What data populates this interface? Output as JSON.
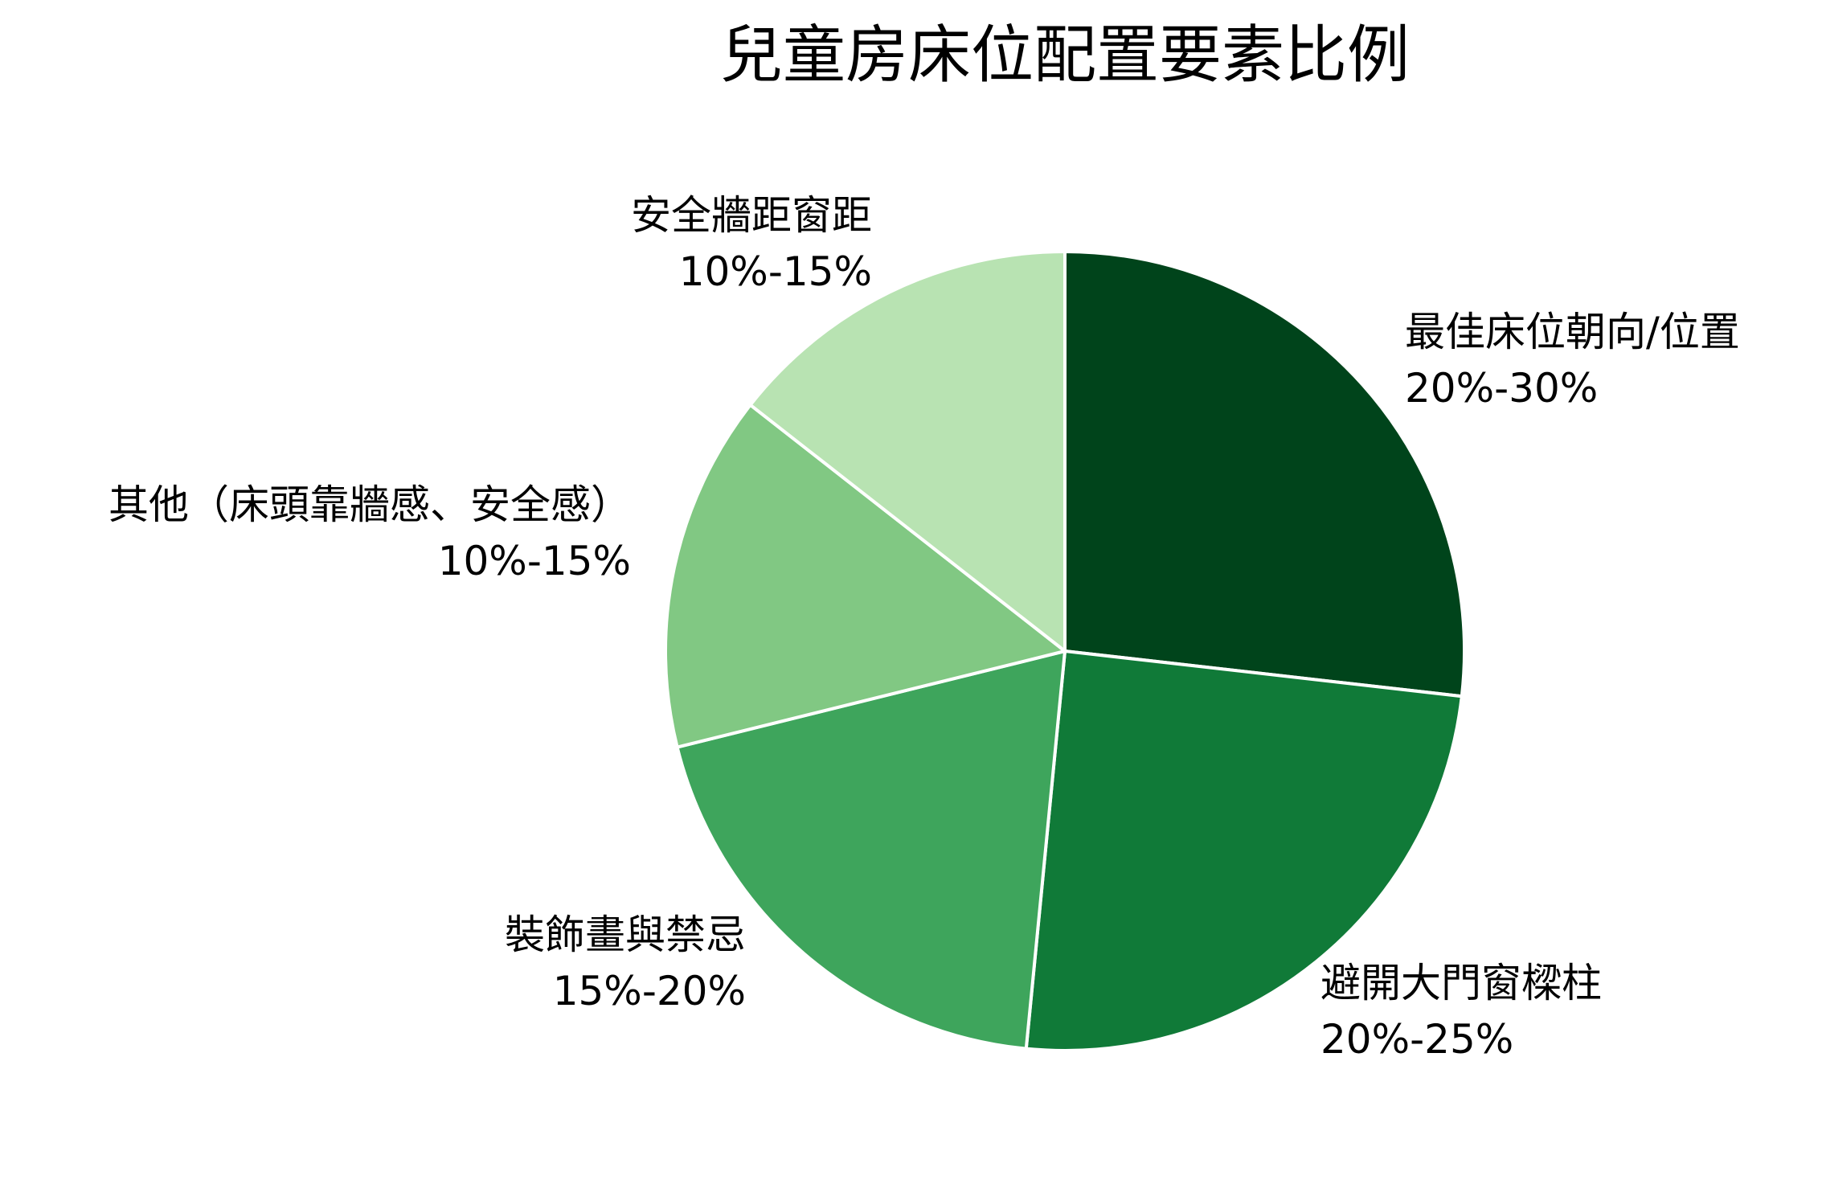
{
  "chart_data": {
    "type": "pie",
    "title": "兒童房床位配置要素比例",
    "start_angle_deg": 90,
    "direction": "clockwise",
    "slices": [
      {
        "name": "最佳床位朝向/位置",
        "range_label": "20%-30%",
        "value": 26,
        "color": "#00441b"
      },
      {
        "name": "避開大門窗樑柱",
        "range_label": "20%-25%",
        "value": 24,
        "color": "#107a38"
      },
      {
        "name": "裝飾畫與禁忌",
        "range_label": "15%-20%",
        "value": 19,
        "color": "#3ea55c"
      },
      {
        "name": "其他（床頭靠牆感、安全感）",
        "range_label": "10%-15%",
        "value": 14,
        "color": "#81c883"
      },
      {
        "name": "安全牆距窗距",
        "range_label": "10%-15%",
        "value": 14,
        "color": "#b8e3b2"
      }
    ],
    "edge_color": "#ffffff",
    "legend": "none",
    "label_position": "outside"
  }
}
